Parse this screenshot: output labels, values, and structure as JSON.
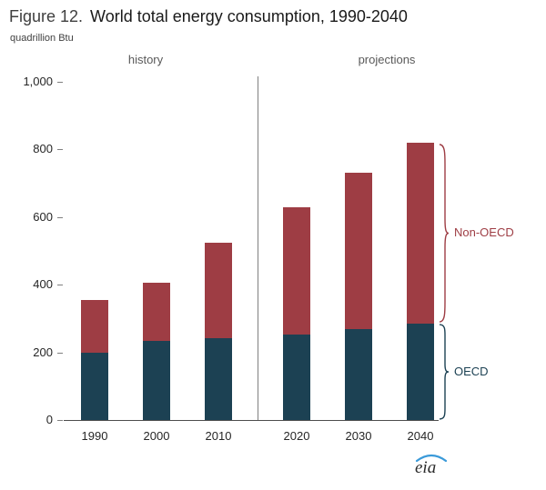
{
  "header": {
    "figure_label": "Figure 12.",
    "title": "World total energy consumption, 1990-2040",
    "units": "quadrillion Btu"
  },
  "sections": {
    "history": "history",
    "projections": "projections"
  },
  "annotations": {
    "non_oecd": "Non-OECD",
    "oecd": "OECD"
  },
  "logo": {
    "text": "eia"
  },
  "colors": {
    "oecd": "#1c4153",
    "non_oecd": "#9e3d44",
    "axis_text": "#262626",
    "section_text": "#595959",
    "logo_swoosh": "#3a9ad9"
  },
  "chart_data": {
    "type": "bar",
    "stacked": true,
    "title": "World total energy consumption, 1990-2040",
    "ylabel": "quadrillion Btu",
    "categories": [
      "1990",
      "2000",
      "2010",
      "2020",
      "2030",
      "2040"
    ],
    "series": [
      {
        "name": "OECD",
        "color": "#1c4153",
        "values": [
          200,
          235,
          242,
          253,
          270,
          285
        ]
      },
      {
        "name": "Non-OECD",
        "color": "#9e3d44",
        "values": [
          155,
          170,
          282,
          377,
          460,
          535
        ]
      }
    ],
    "totals": [
      355,
      405,
      524,
      630,
      730,
      820
    ],
    "ylim": [
      0,
      1000
    ],
    "ytick_values": [
      0,
      200,
      400,
      600,
      800,
      1000
    ],
    "ytick_labels": [
      "0",
      "200",
      "400",
      "600",
      "800",
      "1,000"
    ],
    "grid": false,
    "legend_position": "right-braces",
    "divider_after_category": "2010",
    "section_split": {
      "history": [
        "1990",
        "2000",
        "2010"
      ],
      "projections": [
        "2020",
        "2030",
        "2040"
      ]
    }
  }
}
